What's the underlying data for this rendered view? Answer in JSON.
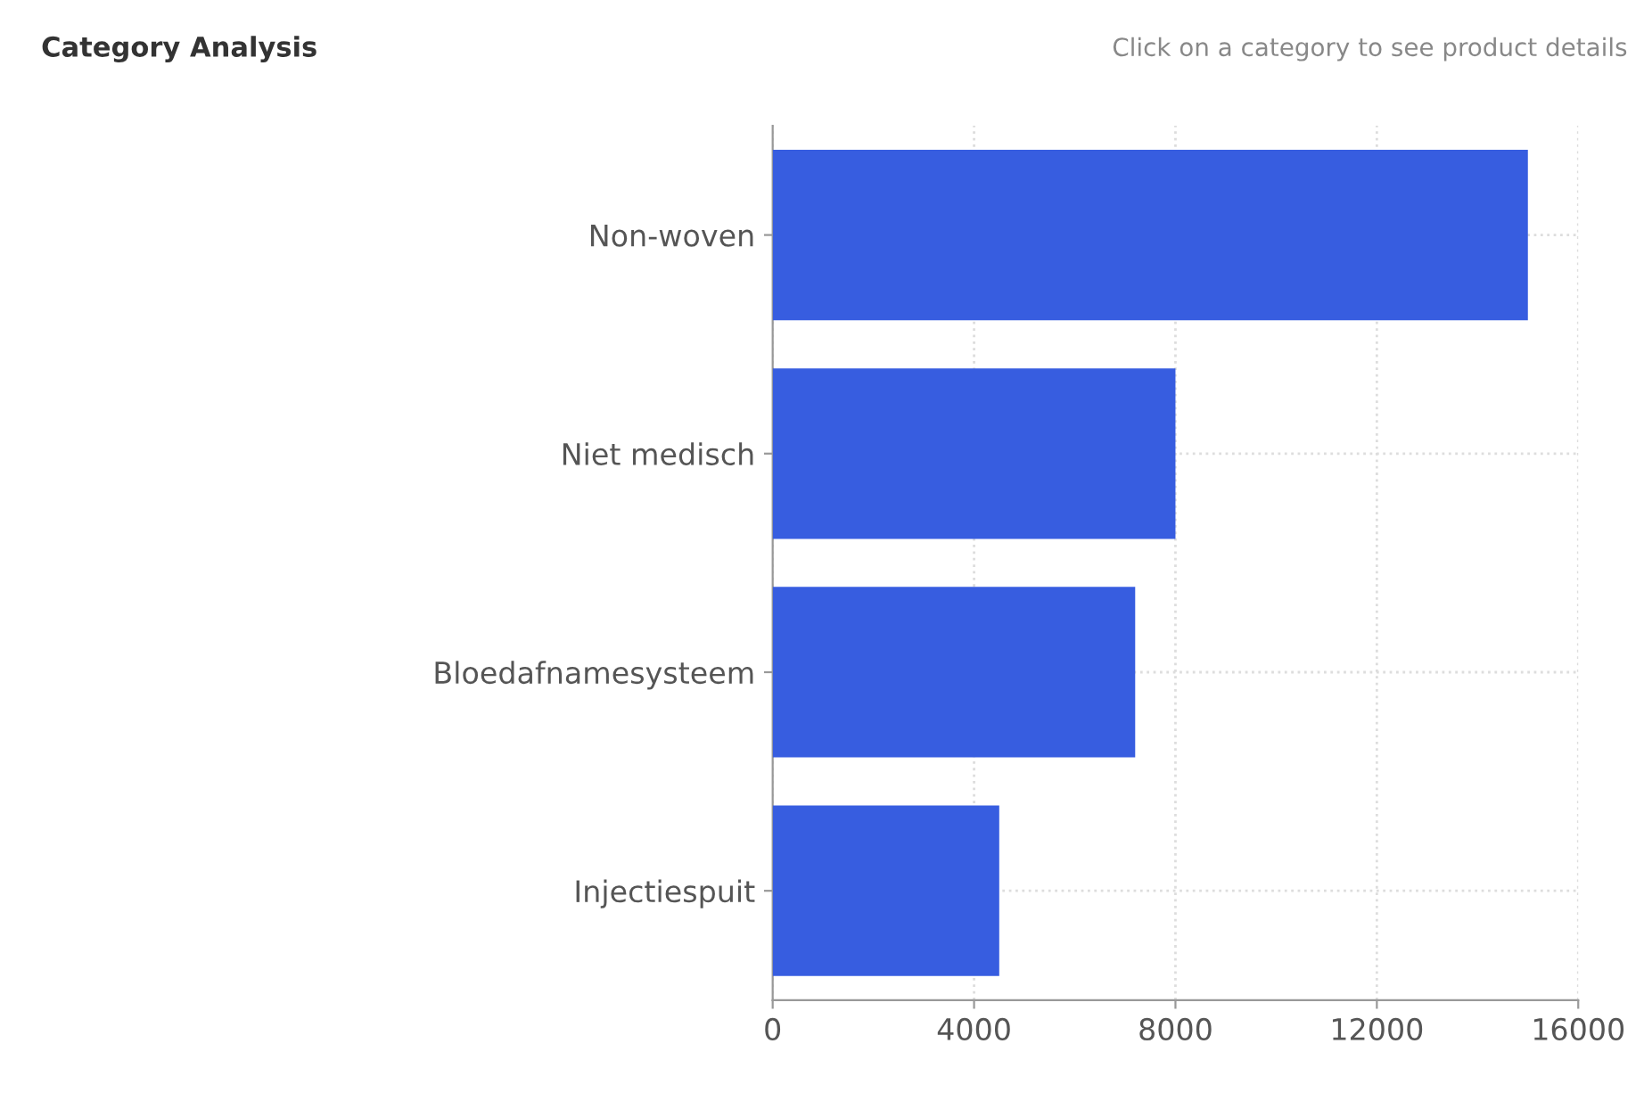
{
  "chart_data": {
    "type": "bar",
    "orientation": "horizontal",
    "title": "Category Analysis",
    "subtitle": "Click on a category to see product details",
    "categories": [
      "Non-woven",
      "Niet medisch",
      "Bloedafnamesysteem",
      "Injectiespuit"
    ],
    "values": [
      15000,
      8000,
      7200,
      4500
    ],
    "color": "#375de0",
    "xlim": [
      0,
      16000
    ],
    "xticks": [
      0,
      4000,
      8000,
      12000,
      16000
    ],
    "grid": true
  }
}
